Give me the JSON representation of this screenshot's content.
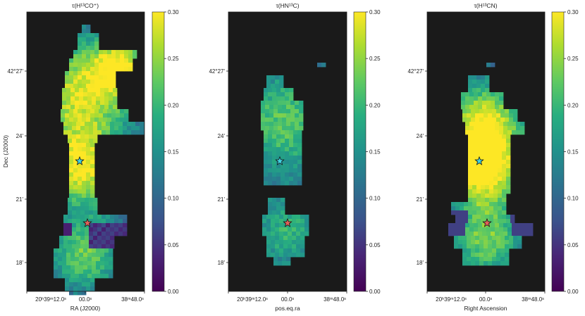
{
  "chart_data": [
    {
      "type": "heatmap",
      "title": "τ(H¹³CO⁺)",
      "xlabel": "RA (J2000)",
      "ylabel": "Dec (J2000)",
      "x_tick_labels": [
        "20ʰ39ᵐ12.0ˢ",
        "00.0ˢ",
        "38ᵐ48.0ˢ"
      ],
      "y_tick_labels": [
        "42°27'",
        "24'",
        "21'",
        "18'"
      ],
      "colorbar": {
        "min": 0.0,
        "max": 0.3,
        "ticks": [
          "0.00",
          "0.05",
          "0.10",
          "0.15",
          "0.20",
          "0.25",
          "0.30"
        ],
        "colormap": "viridis"
      },
      "background_color": "#1a1a1a",
      "stars": [
        {
          "label": "north source",
          "color": "#3fd0e0",
          "ra_offset_s": 2.3,
          "dec_offset_arcmin": 2.7
        },
        {
          "label": "south source",
          "color": "#e0605a",
          "ra_offset_s": -0.4,
          "dec_offset_arcmin": -0.3
        }
      ],
      "cell_size": {
        "ra_s": 0.6,
        "dec_arcmin": 0.4
      },
      "grid_origin": {
        "ra_s": 9.5,
        "dec_arcmin": 10.6
      },
      "rows": [
        "..........................##..",
        ".........................#####.",
        "..........................###..",
        "..........#.............#####..",
        ".........####.........######...",
        "........#######.......#####....",
        "........#########.....####.....",
        ".......###########...###.......",
        ".......#############.###.......",
        "........############.##........",
        "........#################......",
        "........###################....",
        ".........##################....",
        "..........#####.....###........",
        "..........#####................",
        "..........#####................",
        "..........######...............",
        "..........######...............",
        "..........######...............",
        "..........#######..............",
        "..........#######..............",
        "..........#######..............",
        "..........######...............",
        "..........#######..............",
        "........#############..........",
        ".........###########...........",
        ".........###########...........",
        "..........#######..............",
        ".........########..............",
        "........##########.............",
        "........##########.............",
        "........#########..............",
        "........#########..............",
        "........#########..............",
        "..........######..............."
      ]
    },
    {
      "type": "heatmap",
      "title": "τ(HN¹³C)",
      "xlabel": "pos.eq.ra",
      "ylabel": "",
      "x_tick_labels": [
        "20ʰ39ᵐ12.0ˢ",
        "00.0ˢ",
        "38ᵐ48.0ˢ"
      ],
      "y_tick_labels": [
        "42°27'",
        "24'",
        "21'",
        "18'"
      ],
      "colorbar": {
        "min": 0.0,
        "max": 0.3,
        "ticks": [
          "0.00",
          "0.05",
          "0.10",
          "0.15",
          "0.20",
          "0.25",
          "0.30"
        ],
        "colormap": "viridis"
      },
      "background_color": "#1a1a1a",
      "stars": [
        {
          "label": "north source",
          "color": "#3fd0e0",
          "ra_offset_s": 1.8,
          "dec_offset_arcmin": 2.7
        },
        {
          "label": "south source",
          "color": "#e0605a",
          "ra_offset_s": -0.4,
          "dec_offset_arcmin": -0.3
        }
      ]
    },
    {
      "type": "heatmap",
      "title": "τ(H¹³CN)",
      "xlabel": "Right Ascension",
      "ylabel": "",
      "x_tick_labels": [
        "20ʰ39ᵐ12.0ˢ",
        "00.0ˢ",
        "38ᵐ48.0ˢ"
      ],
      "y_tick_labels": [
        "42°27'",
        "24'",
        "21'",
        "18'"
      ],
      "colorbar": {
        "min": 0.0,
        "max": 0.3,
        "ticks": [
          "0.00",
          "0.05",
          "0.10",
          "0.15",
          "0.20",
          "0.25",
          "0.30"
        ],
        "colormap": "viridis"
      },
      "background_color": "#1a1a1a",
      "stars": [
        {
          "label": "north source",
          "color": "#3fd0e0",
          "ra_offset_s": 2.3,
          "dec_offset_arcmin": 2.7
        },
        {
          "label": "south source",
          "color": "#e0605a",
          "ra_offset_s": -0.4,
          "dec_offset_arcmin": -0.3
        }
      ]
    }
  ]
}
